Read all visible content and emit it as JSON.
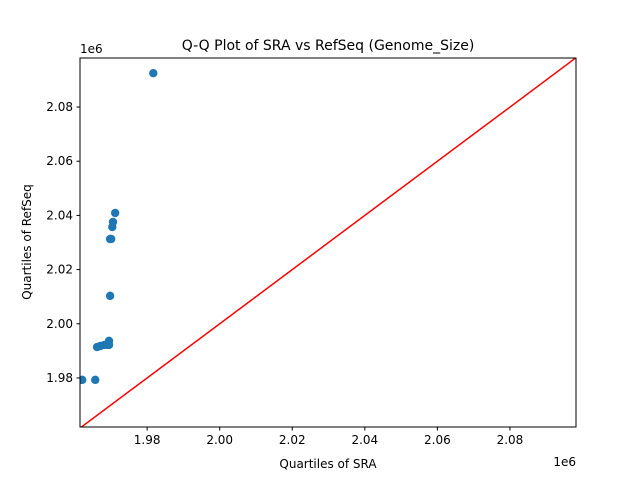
{
  "chart_data": {
    "type": "scatter",
    "title": "Q-Q Plot of SRA vs RefSeq (Genome_Size)",
    "xlabel": "Quartiles of SRA",
    "ylabel": "Quartiles of RefSeq",
    "x_offset_label": "1e6",
    "y_offset_label": "1e6",
    "xlim": [
      1.9615,
      2.0982
    ],
    "ylim": [
      1.9619,
      2.0981
    ],
    "xticks": [
      1.98,
      2.0,
      2.02,
      2.04,
      2.06,
      2.08
    ],
    "xtick_labels": [
      "1.98",
      "2.00",
      "2.02",
      "2.04",
      "2.06",
      "2.08"
    ],
    "yticks": [
      1.98,
      2.0,
      2.02,
      2.04,
      2.06,
      2.08
    ],
    "ytick_labels": [
      "1.98",
      "2.00",
      "2.02",
      "2.04",
      "2.06",
      "2.08"
    ],
    "grid": false,
    "points": {
      "color": "#1f77b4",
      "x": [
        1.9621,
        1.9657,
        1.9662,
        1.9671,
        1.9682,
        1.969,
        1.9695,
        1.9695,
        1.9698,
        1.9698,
        1.9701,
        1.9704,
        1.9706,
        1.9712,
        1.9817
      ],
      "y": [
        1.9793,
        1.9793,
        1.9914,
        1.9918,
        1.9922,
        1.9922,
        1.9922,
        1.9937,
        2.0103,
        2.0313,
        2.0313,
        2.0357,
        2.0376,
        2.0409,
        2.0925
      ]
    },
    "reference_line": {
      "type": "y=x",
      "color": "#ff0000"
    }
  }
}
